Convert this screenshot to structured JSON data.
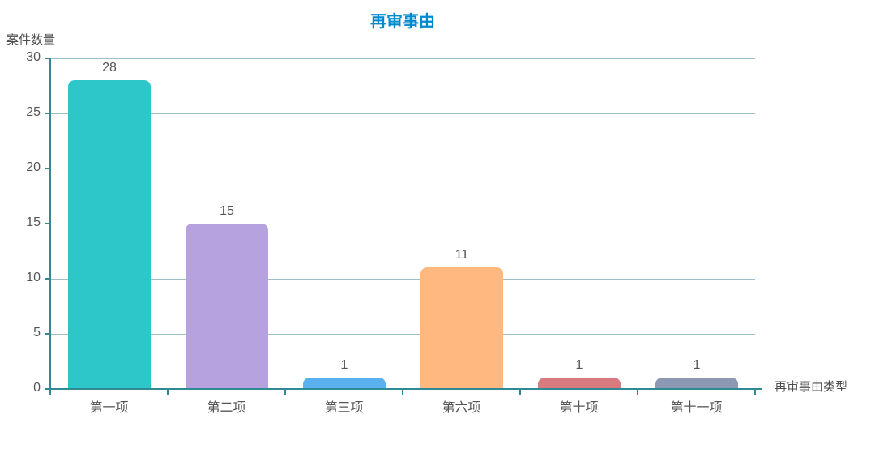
{
  "chart_data": {
    "type": "bar",
    "title": "再审事由",
    "categories": [
      "第一项",
      "第二项",
      "第三项",
      "第六项",
      "第十项",
      "第十一项"
    ],
    "values": [
      28,
      15,
      1,
      11,
      1,
      1
    ],
    "bar_colors": [
      "#2EC7C9",
      "#B6A2DE",
      "#5AB1EF",
      "#FFB980",
      "#D87A80",
      "#8D98B3"
    ],
    "xlabel": "再审事由类型",
    "ylabel": "案件数量",
    "ylim": [
      0,
      30
    ],
    "ytick_step": 5,
    "yticks": [
      0,
      5,
      10,
      15,
      20,
      25,
      30
    ],
    "grid": true,
    "legend_position": "none"
  },
  "colors": {
    "title": "#008ACD",
    "axis": "#2F8A93",
    "gridline": "#9EC1C8",
    "label": "#555555"
  }
}
